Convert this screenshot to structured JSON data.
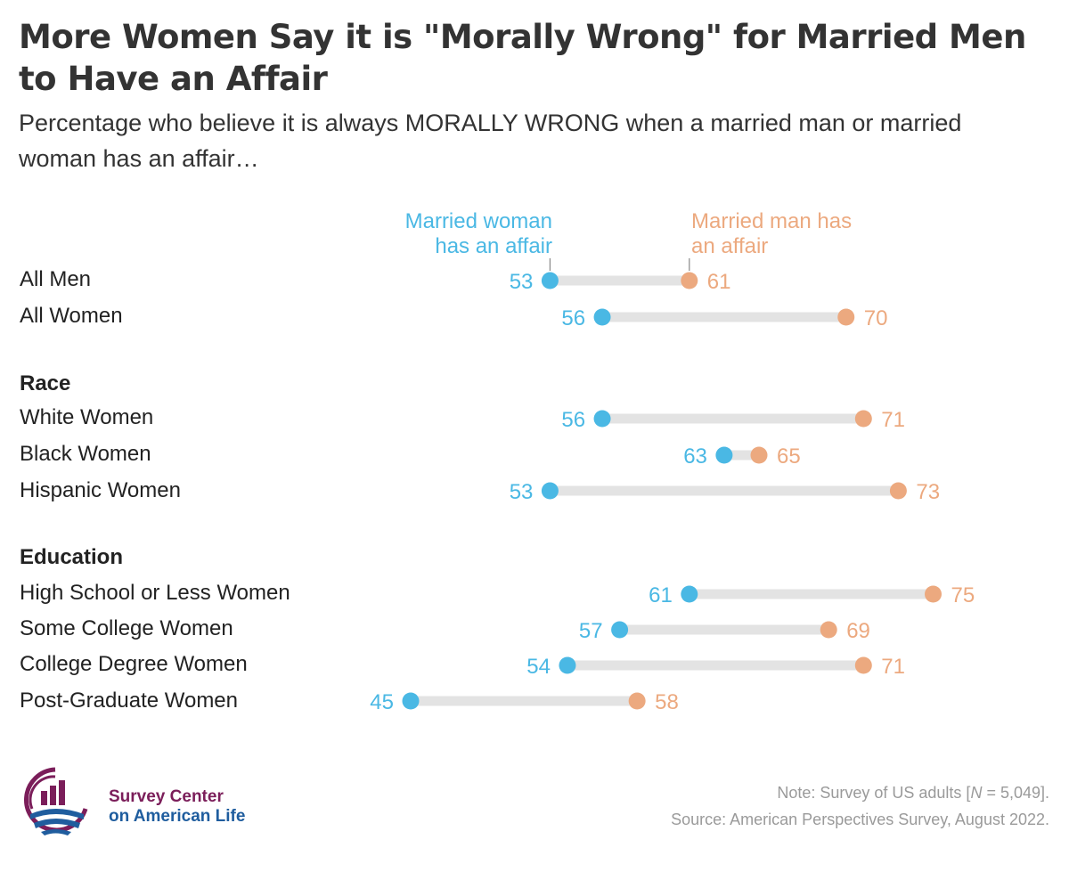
{
  "title": "More Women Say it is \"Morally Wrong\" for Married Men to Have an Affair",
  "subtitle": "Percentage who believe it is always MORALLY WRONG when a married man or married woman has an affair…",
  "colors": {
    "woman": "#4ab8e4",
    "man": "#eca97f",
    "track": "#e3e3e3",
    "logo_purple": "#7b1e5a",
    "logo_blue": "#1f5d9e"
  },
  "legend": {
    "woman_line1": "Married woman",
    "woman_line2": "has an affair",
    "man_line1": "Married man has",
    "man_line2": "an affair"
  },
  "groups": {
    "race": "Race",
    "education": "Education"
  },
  "chart_data": {
    "type": "dumbbell",
    "series": [
      {
        "name": "Married woman has an affair",
        "values": [
          53,
          56,
          56,
          63,
          53,
          61,
          57,
          54,
          45
        ]
      },
      {
        "name": "Married man has an affair",
        "values": [
          61,
          70,
          71,
          65,
          73,
          75,
          69,
          71,
          58
        ]
      }
    ],
    "rows": [
      {
        "label": "All Men",
        "bold": true,
        "woman": 53,
        "man": 61
      },
      {
        "label": "All Women",
        "bold": true,
        "woman": 56,
        "man": 70
      },
      {
        "label": "White Women",
        "bold": false,
        "woman": 56,
        "man": 71
      },
      {
        "label": "Black Women",
        "bold": false,
        "woman": 63,
        "man": 65
      },
      {
        "label": "Hispanic Women",
        "bold": false,
        "woman": 53,
        "man": 73
      },
      {
        "label": "High School or Less Women",
        "bold": false,
        "woman": 61,
        "man": 75
      },
      {
        "label": "Some College Women",
        "bold": false,
        "woman": 57,
        "man": 69
      },
      {
        "label": "College Degree Women",
        "bold": false,
        "woman": 54,
        "man": 71
      },
      {
        "label": "Post-Graduate Women",
        "bold": false,
        "woman": 45,
        "man": 58
      }
    ]
  },
  "footer": {
    "note_prefix": "Note: Survey of US adults [",
    "note_n": "N",
    "note_suffix": " = 5,049].",
    "source": "Source: American Perspectives Survey, August 2022.",
    "logo_line1": "Survey Center",
    "logo_line2": "on American Life"
  }
}
